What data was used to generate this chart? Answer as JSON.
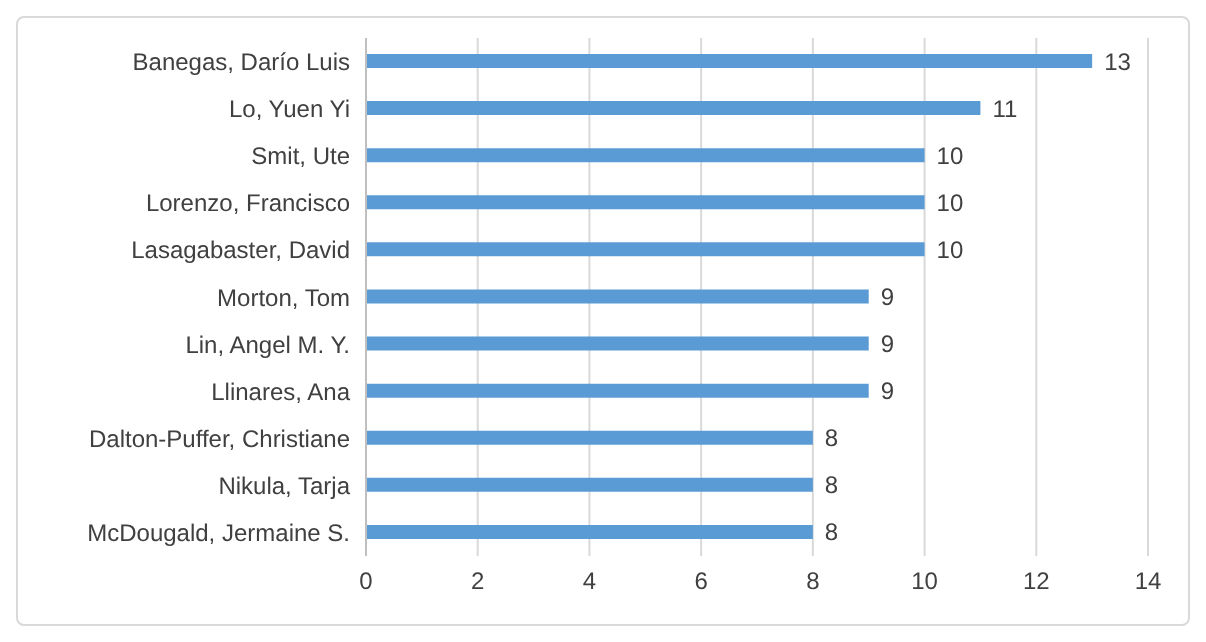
{
  "chart_data": {
    "type": "bar",
    "orientation": "horizontal",
    "categories": [
      "Banegas, Darío Luis",
      "Lo, Yuen Yi",
      "Smit, Ute",
      "Lorenzo, Francisco",
      "Lasagabaster, David",
      "Morton, Tom",
      "Lin, Angel M. Y.",
      "Llinares, Ana",
      "Dalton-Puffer, Christiane",
      "Nikula, Tarja",
      "McDougald, Jermaine S."
    ],
    "values": [
      13,
      11,
      10,
      10,
      10,
      9,
      9,
      9,
      8,
      8,
      8
    ],
    "color": "#5b9bd5",
    "xlim": [
      0,
      14
    ],
    "xticks": [
      0,
      2,
      4,
      6,
      8,
      10,
      12,
      14
    ],
    "grid": "x",
    "data_labels": true
  }
}
